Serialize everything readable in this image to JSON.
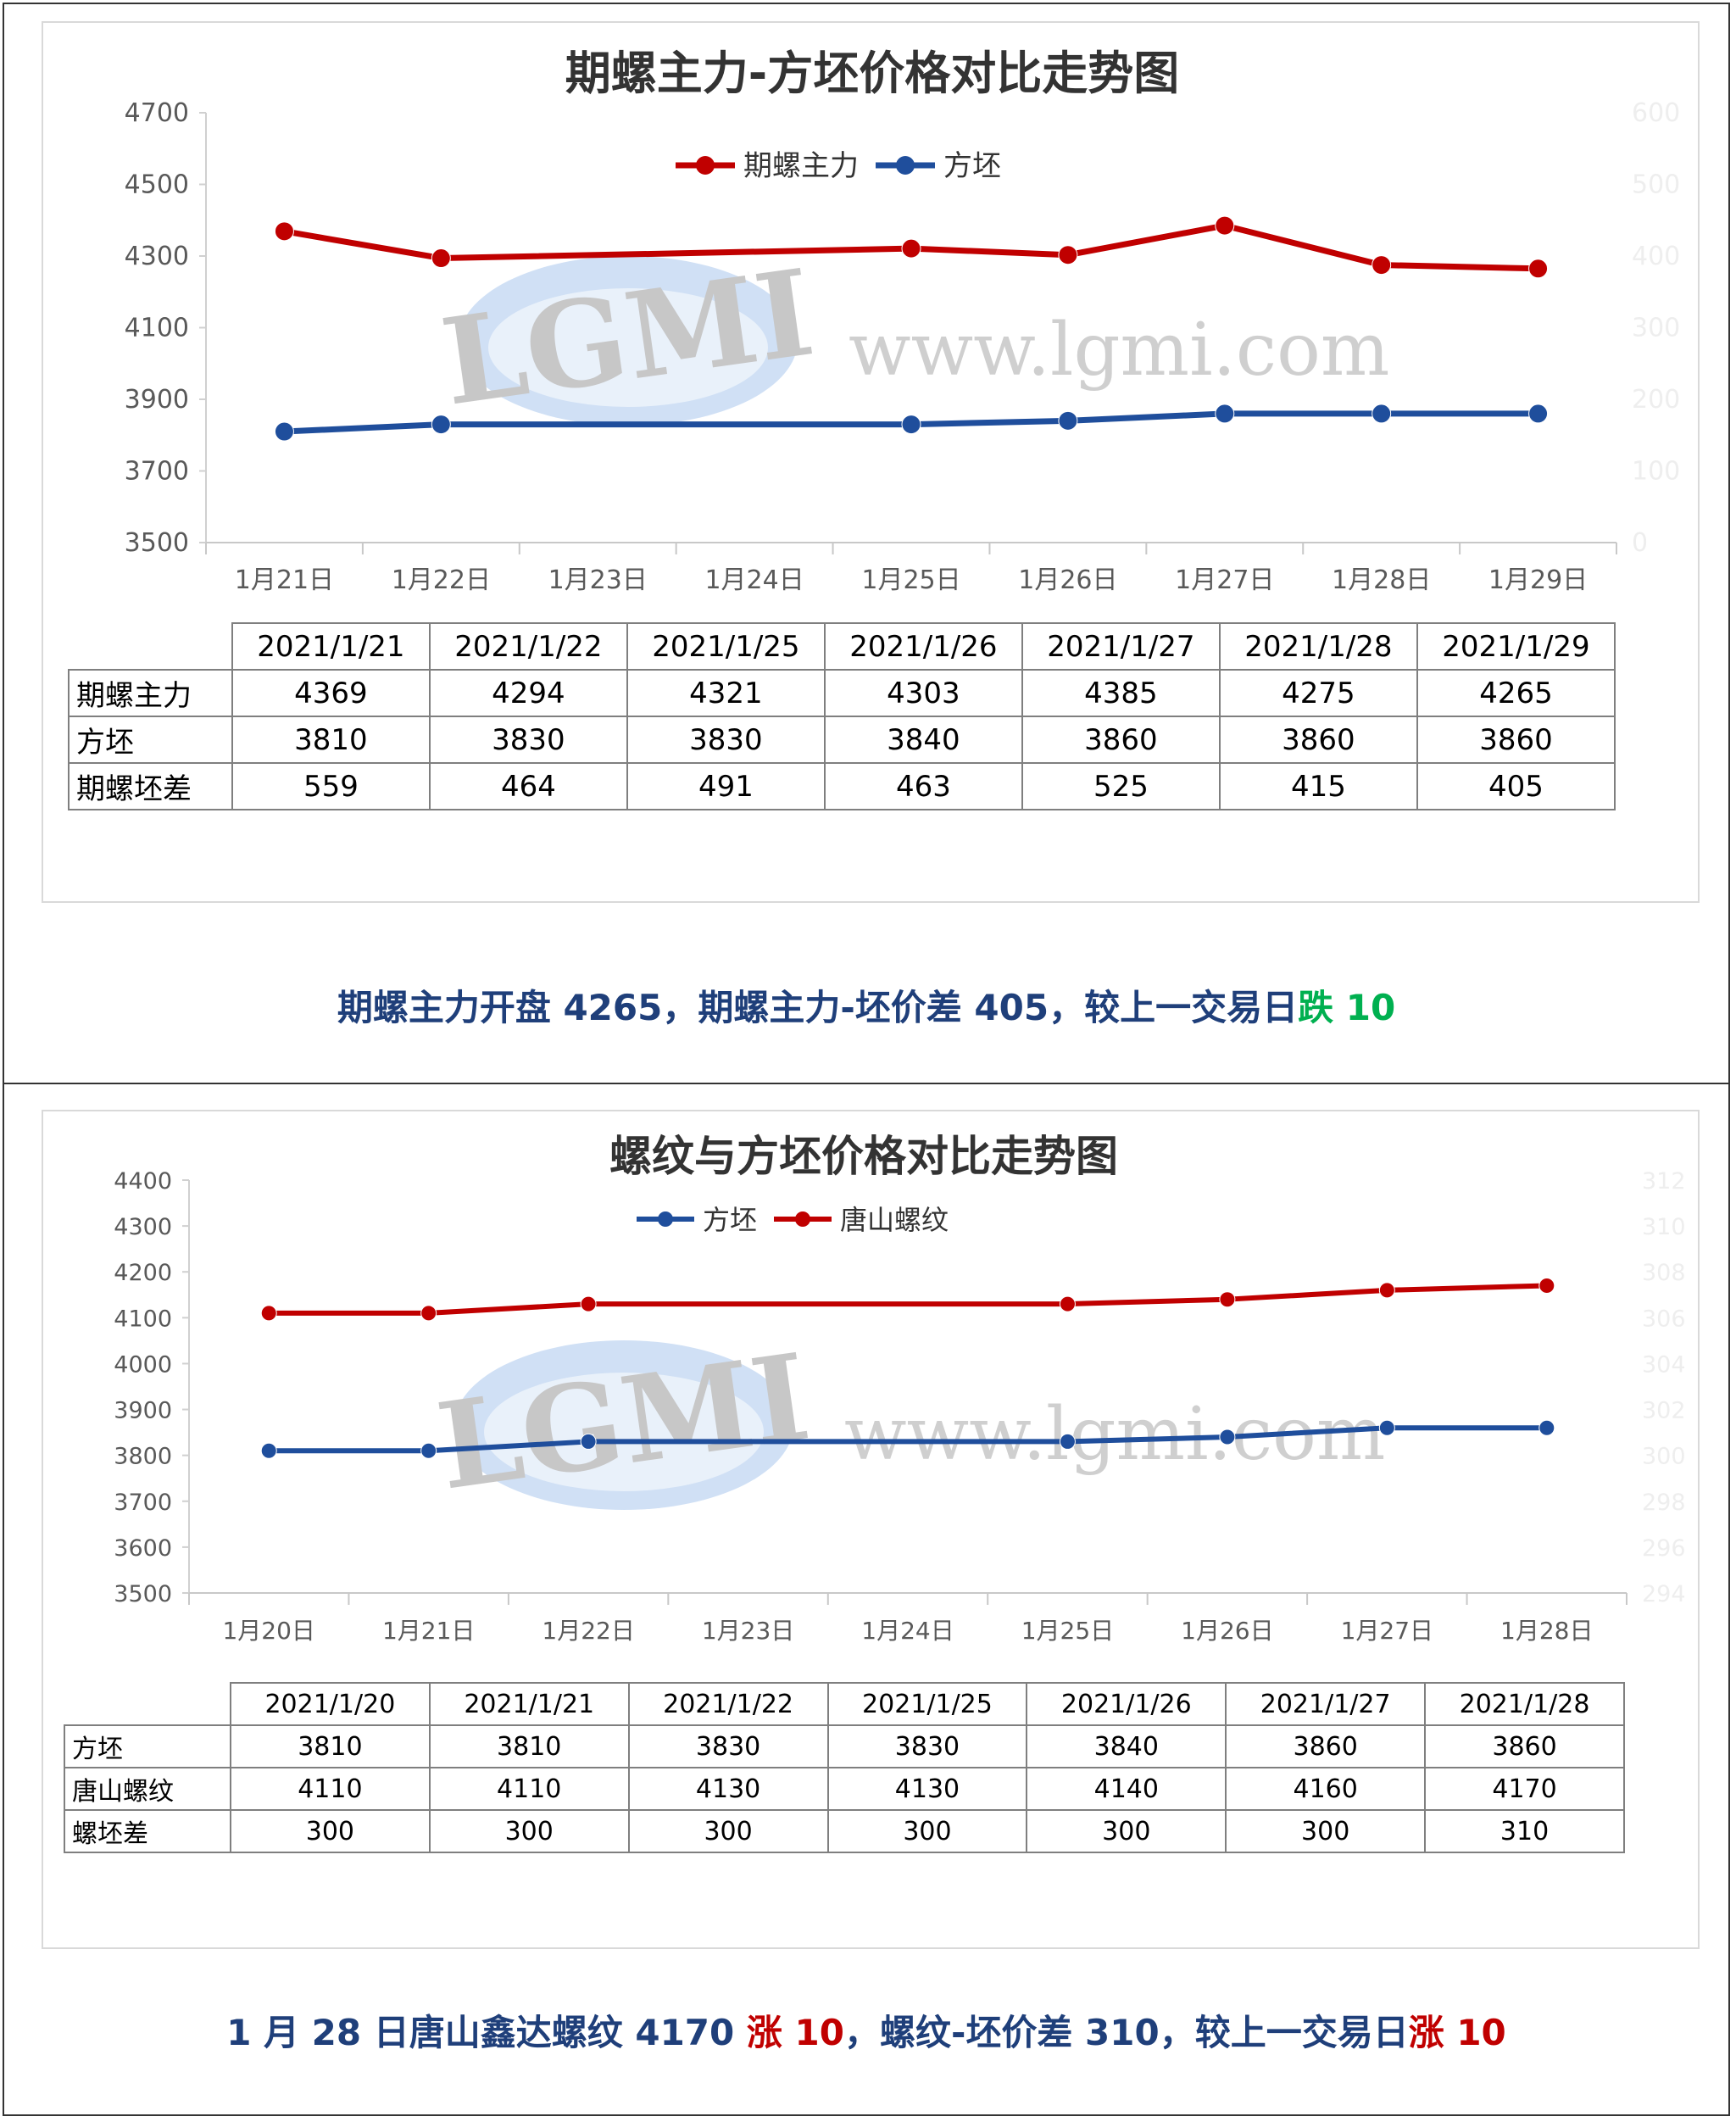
{
  "panels": [
    {
      "chart_data": {
        "type": "line",
        "title": "期螺主力-方坯价格对比走势图",
        "categories": [
          "1月21日",
          "1月22日",
          "1月23日",
          "1月24日",
          "1月25日",
          "1月26日",
          "1月27日",
          "1月28日",
          "1月29日"
        ],
        "y_ticks": [
          "4700",
          "4500",
          "4300",
          "4100",
          "3900",
          "3700",
          "3500"
        ],
        "ylim": [
          3500,
          4700
        ],
        "right_y_ticks": [
          "600",
          "500",
          "400",
          "300",
          "200",
          "100",
          "0"
        ],
        "legend_placement": "top-center",
        "grid": false,
        "series": [
          {
            "name": "期螺主力",
            "color": "#c00000",
            "points": [
              [
                0,
                4369
              ],
              [
                1,
                4294
              ],
              [
                4,
                4321
              ],
              [
                5,
                4303
              ],
              [
                6,
                4385
              ],
              [
                7,
                4275
              ],
              [
                8,
                4265
              ]
            ]
          },
          {
            "name": "方坯",
            "color": "#1f4e9c",
            "points": [
              [
                0,
                3810
              ],
              [
                1,
                3830
              ],
              [
                4,
                3830
              ],
              [
                5,
                3840
              ],
              [
                6,
                3860
              ],
              [
                7,
                3860
              ],
              [
                8,
                3860
              ]
            ]
          }
        ],
        "table": {
          "headers": [
            "2021/1/21",
            "2021/1/22",
            "2021/1/25",
            "2021/1/26",
            "2021/1/27",
            "2021/1/28",
            "2021/1/29"
          ],
          "rows": [
            {
              "label": "期螺主力",
              "values": [
                "4369",
                "4294",
                "4321",
                "4303",
                "4385",
                "4275",
                "4265"
              ]
            },
            {
              "label": "方坯",
              "values": [
                "3810",
                "3830",
                "3830",
                "3840",
                "3860",
                "3860",
                "3860"
              ]
            },
            {
              "label": "期螺坯差",
              "values": [
                "559",
                "464",
                "491",
                "463",
                "525",
                "415",
                "405"
              ]
            }
          ]
        }
      },
      "caption": {
        "main": "期螺主力开盘 4265，期螺主力-坯价差 405，较上一交易日",
        "change_word": "跌",
        "change_value": " 10",
        "change_color": "#00b050"
      }
    },
    {
      "chart_data": {
        "type": "line",
        "title": "螺纹与方坯价格对比走势图",
        "categories": [
          "1月20日",
          "1月21日",
          "1月22日",
          "1月23日",
          "1月24日",
          "1月25日",
          "1月26日",
          "1月27日",
          "1月28日"
        ],
        "y_ticks": [
          "4400",
          "4300",
          "4200",
          "4100",
          "4000",
          "3900",
          "3800",
          "3700",
          "3600",
          "3500"
        ],
        "ylim": [
          3500,
          4400
        ],
        "right_y_ticks": [
          "312",
          "310",
          "308",
          "306",
          "304",
          "302",
          "300",
          "298",
          "296",
          "294"
        ],
        "legend_placement": "top-center",
        "grid": false,
        "series": [
          {
            "name": "方坯",
            "color": "#1f4e9c",
            "points": [
              [
                0,
                3810
              ],
              [
                1,
                3810
              ],
              [
                2,
                3830
              ],
              [
                5,
                3830
              ],
              [
                6,
                3840
              ],
              [
                7,
                3860
              ],
              [
                8,
                3860
              ]
            ]
          },
          {
            "name": "唐山螺纹",
            "color": "#c00000",
            "points": [
              [
                0,
                4110
              ],
              [
                1,
                4110
              ],
              [
                2,
                4130
              ],
              [
                5,
                4130
              ],
              [
                6,
                4140
              ],
              [
                7,
                4160
              ],
              [
                8,
                4170
              ]
            ]
          }
        ],
        "table": {
          "headers": [
            "2021/1/20",
            "2021/1/21",
            "2021/1/22",
            "2021/1/25",
            "2021/1/26",
            "2021/1/27",
            "2021/1/28"
          ],
          "rows": [
            {
              "label": "方坯",
              "values": [
                "3810",
                "3810",
                "3830",
                "3830",
                "3840",
                "3860",
                "3860"
              ]
            },
            {
              "label": "唐山螺纹",
              "values": [
                "4110",
                "4110",
                "4130",
                "4130",
                "4140",
                "4160",
                "4170"
              ]
            },
            {
              "label": "螺坯差",
              "values": [
                "300",
                "300",
                "300",
                "300",
                "300",
                "300",
                "310"
              ]
            }
          ]
        }
      },
      "caption": {
        "main1": "1 月 28 日唐山鑫达螺纹 4170 ",
        "rise1": "涨 10",
        "main2": "，螺纹-坯价差 310，较上一交易日",
        "rise2": "涨 10",
        "rise_color": "#c00000"
      }
    }
  ],
  "watermark": {
    "logo_text": "LGMI",
    "url_text": "www.lgmi.com"
  }
}
